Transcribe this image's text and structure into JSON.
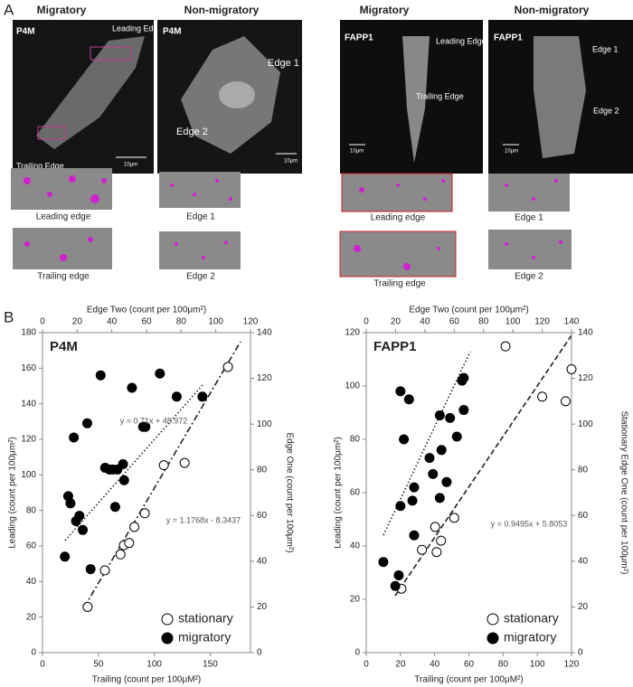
{
  "figure": {
    "panel_a": {
      "label": "A",
      "headers": [
        "Migratory",
        "Non-migratory",
        "Migratory",
        "Non-migratory"
      ],
      "images": [
        {
          "labels": [
            "P4M",
            "Leading Edge",
            "Trailing Edge",
            "10μm"
          ]
        },
        {
          "labels": [
            "P4M",
            "Edge 1",
            "Edge 2",
            "10μm"
          ]
        },
        {
          "labels": [
            "FAPP1",
            "Leading Edge",
            "Trailing Edge",
            "10μm"
          ]
        },
        {
          "labels": [
            "FAPP1",
            "Edge 1",
            "Edge 2",
            "10μm"
          ]
        }
      ],
      "crops": [
        "Leading edge",
        "Edge 1",
        "Leading edge",
        "Edge 1",
        "Trailing edge",
        "Edge 2",
        "Trailing edge",
        "Edge 2"
      ]
    },
    "panel_b": {
      "label": "B"
    }
  },
  "chart_data": [
    {
      "type": "scatter",
      "title": "P4M",
      "xlabel": "Trailing (count per 100μM²)",
      "ylabel": "Leading (count per 100μm²)",
      "x2label": "Edge Two (count per 100μm²)",
      "y2label": "Edge One (count per 100μm²)",
      "xlim": [
        0,
        186
      ],
      "xticks": [
        0,
        50,
        100,
        150
      ],
      "ylim": [
        0,
        180
      ],
      "yticks": [
        0,
        20,
        40,
        60,
        80,
        100,
        120,
        140,
        160,
        180
      ],
      "x2lim": [
        0,
        120
      ],
      "x2ticks": [
        0,
        20,
        40,
        60,
        80,
        100,
        120
      ],
      "y2lim": [
        0,
        140
      ],
      "y2ticks": [
        0,
        20,
        40,
        60,
        80,
        100,
        120,
        140
      ],
      "series": [
        {
          "name": "stationary",
          "color": "#ffffff",
          "axis": "y2",
          "xaxis": "x2",
          "x": [
            26,
            36,
            45,
            47,
            50,
            53,
            59,
            70,
            82,
            107
          ],
          "values": [
            20,
            36,
            43,
            47,
            48,
            55,
            61,
            82,
            83,
            125
          ]
        },
        {
          "name": "migratory",
          "color": "#000000",
          "x": [
            20,
            23,
            25,
            28,
            30,
            33,
            36,
            40,
            43,
            52,
            56,
            60,
            63,
            65,
            67,
            72,
            73,
            80,
            90,
            92,
            105,
            120,
            143
          ],
          "values": [
            54,
            88,
            84,
            121,
            74,
            77,
            69,
            129,
            47,
            156,
            104,
            103,
            103,
            82,
            103,
            106,
            97,
            149,
            127,
            127,
            157,
            144,
            144
          ]
        }
      ],
      "annotations": [
        "y = 0.71x + 48.972",
        "y = 1.1768x - 8.3437"
      ]
    },
    {
      "type": "scatter",
      "title": "FAPP1",
      "xlabel": "Trailing (count per 100μM²)",
      "ylabel": "Leading (count per 100μm²)",
      "x2label": "Edge Two (count per 100μm²)",
      "y2label": "Stationary Edge One (count per 100μm²)",
      "xlim": [
        0,
        120
      ],
      "xticks": [
        0,
        20,
        40,
        60,
        80,
        100,
        120
      ],
      "ylim": [
        0,
        120
      ],
      "yticks": [
        0,
        20,
        40,
        60,
        80,
        100,
        120
      ],
      "x2lim": [
        0,
        140
      ],
      "x2ticks": [
        0,
        20,
        40,
        60,
        80,
        100,
        120,
        140
      ],
      "y2lim": [
        0,
        140
      ],
      "y2ticks": [
        0,
        20,
        40,
        60,
        80,
        100,
        120,
        140
      ],
      "series": [
        {
          "name": "stationary",
          "color": "#ffffff",
          "axis": "y2",
          "xaxis": "x2",
          "x": [
            24,
            38,
            47,
            48,
            51,
            60,
            95,
            120,
            136,
            140
          ],
          "values": [
            28,
            45,
            55,
            44,
            49,
            59,
            134,
            112,
            110,
            124
          ]
        },
        {
          "name": "migratory",
          "color": "#000000",
          "x": [
            10,
            17,
            19,
            20,
            20,
            22,
            25,
            27,
            28,
            28,
            37,
            39,
            43,
            43,
            44,
            47,
            49,
            53,
            56,
            57,
            57
          ],
          "values": [
            34,
            25,
            29,
            55,
            98,
            80,
            95,
            57,
            62,
            44,
            73,
            67,
            89,
            58,
            76,
            64,
            88,
            81,
            102,
            103,
            91
          ]
        }
      ],
      "annotations": [
        "y = 0.9495x + 5.8053"
      ]
    }
  ]
}
